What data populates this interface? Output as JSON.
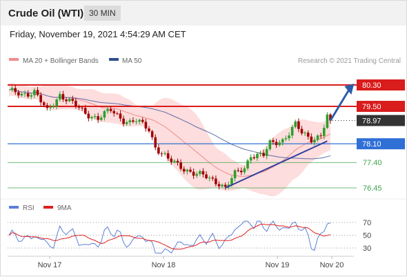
{
  "header": {
    "title": "Crude Oil (WTI)",
    "timeframe": "30 MIN"
  },
  "date_text": "Friday, November 19, 2021 4:54:29 AM CET",
  "colors": {
    "resistance": "#d91c1c",
    "support": "#2f6fd6",
    "target": "#3fa34d",
    "price_tag": "#333333",
    "bull": "#2e9e2e",
    "bear": "#a00000",
    "bollinger_fill": "#fdd7d7",
    "ma20": "#f28b8b",
    "ma50": "#5b6fa8",
    "arrow": "#2d5da8",
    "rsi": "#5b7fd6",
    "rsi_ma": "#e02020"
  },
  "chart_data": {
    "type": "candlestick",
    "instrument": "Crude Oil (WTI)",
    "interval": "30 MIN",
    "x_labels": [
      "Nov 17",
      "Nov 18",
      "Nov 19",
      "Nov 20"
    ],
    "legend": [
      "MA 20 + Bollinger Bands",
      "MA 50"
    ],
    "source": "Research © 2021 Trading Central",
    "ylim": [
      76.2,
      80.6
    ],
    "levels": [
      {
        "value": 80.3,
        "label": "80.30",
        "kind": "resistance"
      },
      {
        "value": 79.5,
        "label": "79.50",
        "kind": "resistance"
      },
      {
        "value": 78.97,
        "label": "78.97",
        "kind": "last_price"
      },
      {
        "value": 78.1,
        "label": "78.10",
        "kind": "pivot"
      },
      {
        "value": 77.4,
        "label": "77.40",
        "kind": "support"
      },
      {
        "value": 76.45,
        "label": "76.45",
        "kind": "support"
      }
    ],
    "price_path": [
      [
        0,
        80.05
      ],
      [
        4,
        79.95
      ],
      [
        8,
        80.05
      ],
      [
        12,
        79.3
      ],
      [
        16,
        79.95
      ],
      [
        20,
        79.6
      ],
      [
        24,
        79.25
      ],
      [
        28,
        79.05
      ],
      [
        32,
        79.35
      ],
      [
        36,
        79.0
      ],
      [
        38,
        78.9
      ],
      [
        40,
        78.95
      ],
      [
        44,
        78.65
      ],
      [
        46,
        78.0
      ],
      [
        50,
        77.5
      ],
      [
        54,
        77.25
      ],
      [
        58,
        77.0
      ],
      [
        62,
        76.85
      ],
      [
        66,
        76.65
      ],
      [
        68,
        76.45
      ],
      [
        71,
        76.95
      ],
      [
        74,
        77.2
      ],
      [
        76,
        77.7
      ],
      [
        80,
        77.65
      ],
      [
        82,
        78.1
      ],
      [
        86,
        78.25
      ],
      [
        88,
        78.5
      ],
      [
        90,
        78.8
      ],
      [
        92,
        78.5
      ],
      [
        95,
        78.3
      ],
      [
        98,
        78.4
      ],
      [
        100,
        79.1
      ],
      [
        101,
        78.97
      ]
    ],
    "trendline": {
      "from": [
        68,
        76.45
      ],
      "to": [
        100,
        78.2
      ]
    },
    "projection": {
      "from": [
        101,
        78.97
      ],
      "to": [
        108,
        80.3
      ]
    },
    "rsi": {
      "legend": [
        "RSI",
        "9MA"
      ],
      "levels": [
        70,
        50,
        30
      ],
      "ylim": [
        15,
        80
      ]
    }
  }
}
